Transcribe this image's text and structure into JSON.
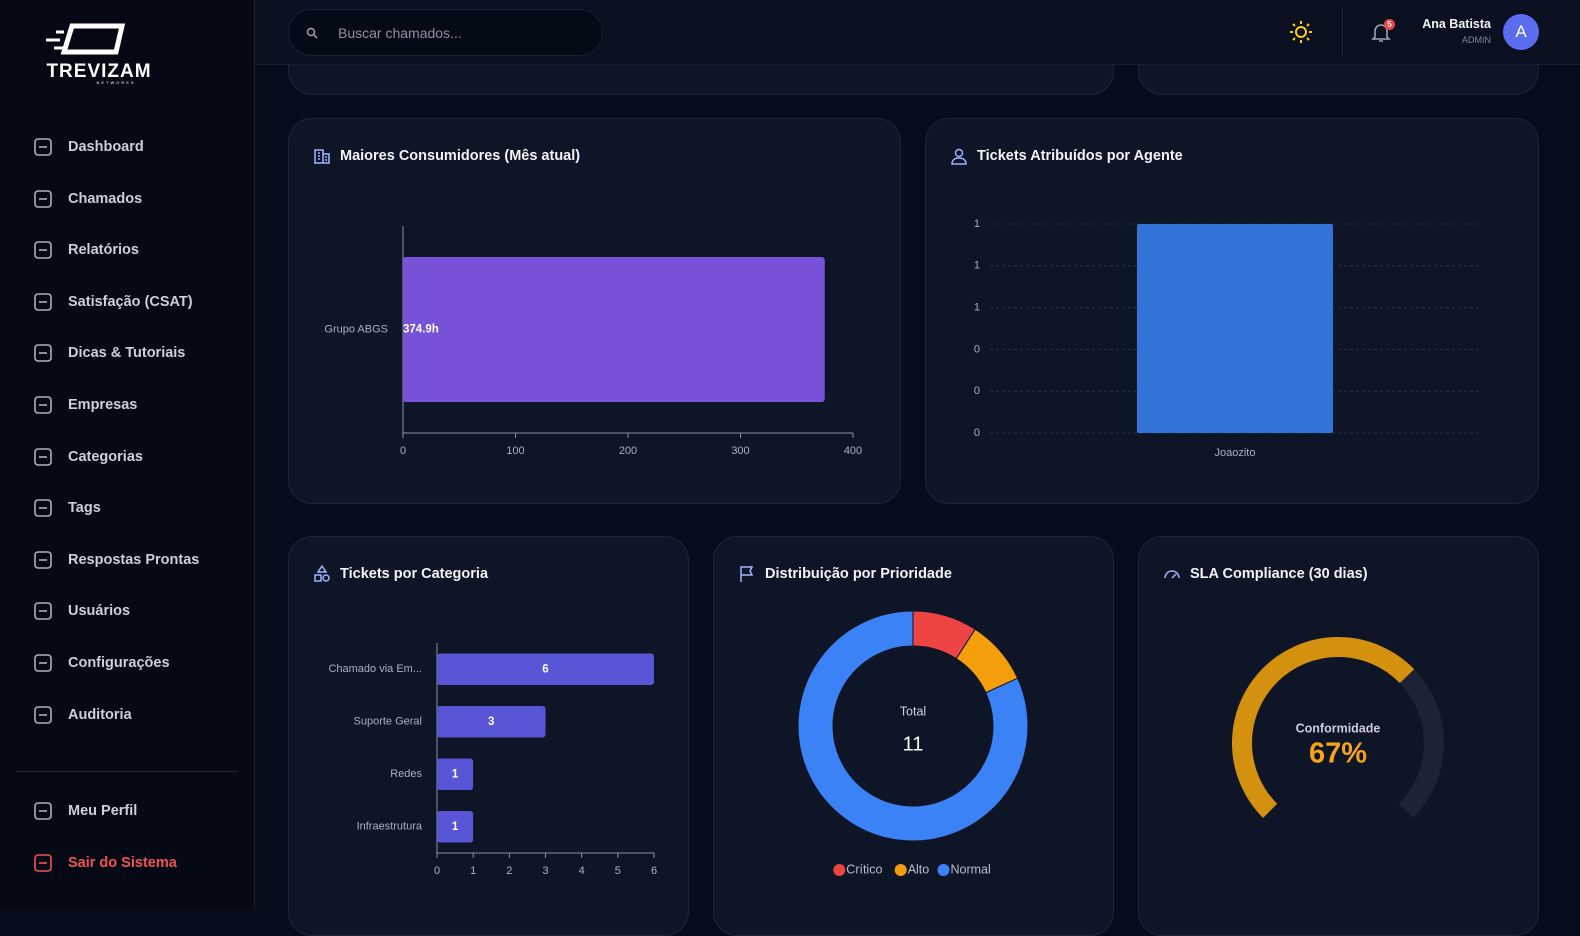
{
  "sidebar": {
    "brand": "TREVIZAM",
    "brand_sub": "NETWORKS",
    "nav": [
      "Dashboard",
      "Chamados",
      "Relatórios",
      "Satisfação (CSAT)",
      "Dicas & Tutoriais",
      "Empresas",
      "Categorias",
      "Tags",
      "Respostas Prontas",
      "Usuários",
      "Configurações",
      "Auditoria"
    ],
    "footer_nav": [
      "Meu Perfil",
      "Sair do Sistema"
    ]
  },
  "header": {
    "search_placeholder": "Buscar chamados...",
    "notification_count": 5,
    "user_name": "Ana Batista",
    "user_role": "ADMIN",
    "avatar": "A"
  },
  "chart_data": [
    {
      "type": "hbar",
      "title": "Maiores Consumidores (Mês atual)",
      "categories": [
        "Grupo ABGS"
      ],
      "values": [
        374.9
      ],
      "value_labels": [
        "374.9h"
      ],
      "color": "#7852d8",
      "xlim": [
        0,
        400
      ],
      "xticks": [
        0,
        100,
        200,
        300,
        400
      ]
    },
    {
      "type": "bar",
      "title": "Tickets Atribuídos por Agente",
      "categories": [
        "Joaozito"
      ],
      "values": [
        1
      ],
      "color": "#3374d9",
      "ylim": [
        0,
        1
      ],
      "yticks": [
        {
          "value": 0,
          "label": "0"
        },
        {
          "value": 0.2,
          "label": "0"
        },
        {
          "value": 0.4,
          "label": "0"
        },
        {
          "value": 0.6,
          "label": "1"
        },
        {
          "value": 0.8,
          "label": "1"
        },
        {
          "value": 1,
          "label": "1"
        }
      ],
      "grid": true
    },
    {
      "type": "hbar",
      "title": "Tickets por Categoria",
      "categories": [
        "Chamado via Em...",
        "Suporte Geral",
        "Redes",
        "Infraestrutura"
      ],
      "values": [
        6,
        3,
        1,
        1
      ],
      "color": "#5856d6",
      "xlim": [
        0,
        6
      ],
      "xticks": [
        0,
        1,
        2,
        3,
        4,
        5,
        6
      ]
    },
    {
      "type": "doughnut",
      "title": "Distribuição por Prioridade",
      "categories": [
        "Crítico",
        "Alto",
        "Normal"
      ],
      "values": [
        1,
        1,
        9
      ],
      "colors": [
        "#ef4444",
        "#f59e0b",
        "#3b82f6"
      ],
      "center_label": "Total",
      "center_value": 11
    },
    {
      "type": "gauge",
      "title": "SLA Compliance (30 dias)",
      "label": "Conformidade",
      "values": [
        67
      ],
      "value_labels": [
        "67%"
      ],
      "ylim": [
        0,
        100
      ],
      "color": "#d4900f"
    }
  ]
}
